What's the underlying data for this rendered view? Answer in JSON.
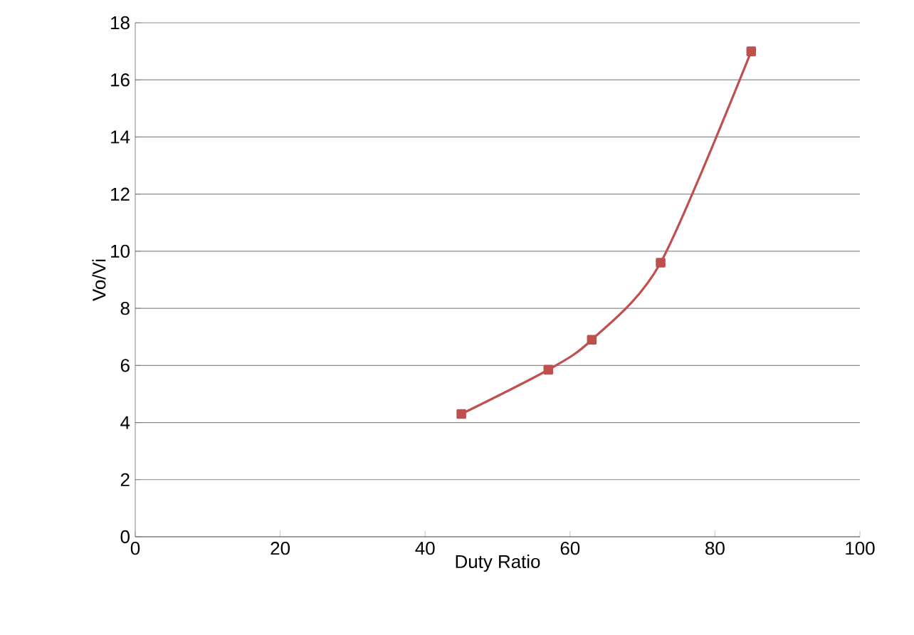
{
  "chart_data": {
    "type": "line",
    "xlabel": "Duty Ratio",
    "ylabel": "Vo/Vi",
    "x": [
      45,
      57,
      63,
      72.5,
      85
    ],
    "series": [
      {
        "color": "#c0504d",
        "values": [
          4.3,
          5.85,
          6.9,
          9.6,
          17
        ]
      }
    ],
    "xlim": [
      0,
      100
    ],
    "xticks": [
      0,
      20,
      40,
      60,
      80,
      100
    ],
    "ylim": [
      0,
      18
    ],
    "yticks": [
      0,
      2,
      4,
      6,
      8,
      10,
      12,
      14,
      16,
      18
    ],
    "grid": "y",
    "marker": "square",
    "line_style": "solid"
  }
}
